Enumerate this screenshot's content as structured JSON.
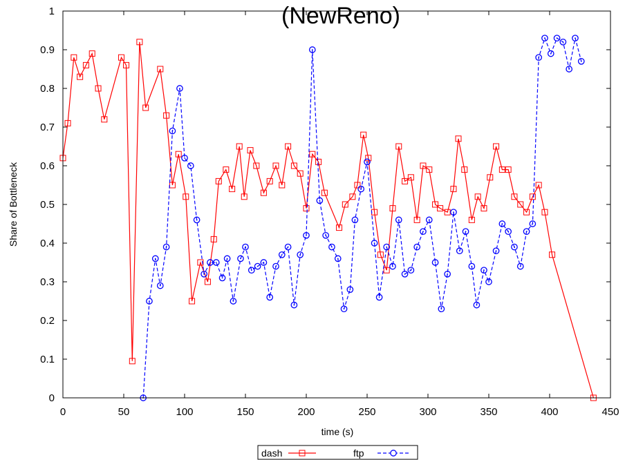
{
  "chart_data": {
    "type": "line",
    "title": "(NewReno)",
    "xlabel": "time (s)",
    "ylabel": "Share of Bottleneck",
    "xlim": [
      0,
      450
    ],
    "ylim": [
      0,
      1
    ],
    "x_ticks": [
      "0",
      "50",
      "100",
      "150",
      "200",
      "250",
      "300",
      "350",
      "400",
      "450"
    ],
    "y_ticks": [
      "0",
      "0.1",
      "0.2",
      "0.3",
      "0.4",
      "0.5",
      "0.6",
      "0.7",
      "0.8",
      "0.9",
      "1"
    ],
    "grid": false,
    "legend_position": "bottom-center",
    "series": [
      {
        "name": "dash",
        "color": "#ff0000",
        "line_style": "solid",
        "marker": "square",
        "points": [
          [
            0,
            0.62
          ],
          [
            4,
            0.71
          ],
          [
            9,
            0.88
          ],
          [
            14,
            0.83
          ],
          [
            19,
            0.86
          ],
          [
            24,
            0.89
          ],
          [
            29,
            0.8
          ],
          [
            34,
            0.72
          ],
          [
            48,
            0.88
          ],
          [
            52,
            0.86
          ],
          [
            57,
            0.095
          ],
          [
            63,
            0.92
          ],
          [
            68,
            0.75
          ],
          [
            80,
            0.85
          ],
          [
            85,
            0.73
          ],
          [
            90,
            0.55
          ],
          [
            95,
            0.63
          ],
          [
            101,
            0.52
          ],
          [
            106,
            0.25
          ],
          [
            113,
            0.35
          ],
          [
            119,
            0.3
          ],
          [
            124,
            0.41
          ],
          [
            128,
            0.56
          ],
          [
            134,
            0.59
          ],
          [
            139,
            0.54
          ],
          [
            145,
            0.65
          ],
          [
            149,
            0.52
          ],
          [
            154,
            0.64
          ],
          [
            159,
            0.6
          ],
          [
            165,
            0.53
          ],
          [
            170,
            0.56
          ],
          [
            175,
            0.6
          ],
          [
            180,
            0.55
          ],
          [
            185,
            0.65
          ],
          [
            190,
            0.6
          ],
          [
            195,
            0.58
          ],
          [
            200,
            0.49
          ],
          [
            205,
            0.63
          ],
          [
            210,
            0.61
          ],
          [
            215,
            0.53
          ],
          [
            227,
            0.44
          ],
          [
            232,
            0.5
          ],
          [
            238,
            0.52
          ],
          [
            242,
            0.55
          ],
          [
            247,
            0.68
          ],
          [
            251,
            0.62
          ],
          [
            256,
            0.48
          ],
          [
            261,
            0.37
          ],
          [
            266,
            0.33
          ],
          [
            271,
            0.49
          ],
          [
            276,
            0.65
          ],
          [
            281,
            0.56
          ],
          [
            286,
            0.57
          ],
          [
            291,
            0.46
          ],
          [
            296,
            0.6
          ],
          [
            301,
            0.59
          ],
          [
            306,
            0.5
          ],
          [
            310,
            0.49
          ],
          [
            316,
            0.48
          ],
          [
            321,
            0.54
          ],
          [
            325,
            0.67
          ],
          [
            330,
            0.59
          ],
          [
            336,
            0.46
          ],
          [
            341,
            0.52
          ],
          [
            346,
            0.49
          ],
          [
            351,
            0.57
          ],
          [
            356,
            0.65
          ],
          [
            361,
            0.59
          ],
          [
            366,
            0.59
          ],
          [
            371,
            0.52
          ],
          [
            376,
            0.5
          ],
          [
            381,
            0.48
          ],
          [
            386,
            0.52
          ],
          [
            391,
            0.55
          ],
          [
            396,
            0.48
          ],
          [
            402,
            0.37
          ],
          [
            436,
            0.0
          ]
        ]
      },
      {
        "name": "ftp",
        "color": "#0000ff",
        "line_style": "dashed",
        "marker": "circle",
        "points": [
          [
            66,
            0.0
          ],
          [
            71,
            0.25
          ],
          [
            76,
            0.36
          ],
          [
            80,
            0.29
          ],
          [
            85,
            0.39
          ],
          [
            90,
            0.69
          ],
          [
            96,
            0.8
          ],
          [
            100,
            0.62
          ],
          [
            105,
            0.6
          ],
          [
            110,
            0.46
          ],
          [
            116,
            0.32
          ],
          [
            121,
            0.35
          ],
          [
            126,
            0.35
          ],
          [
            131,
            0.31
          ],
          [
            135,
            0.36
          ],
          [
            140,
            0.25
          ],
          [
            146,
            0.36
          ],
          [
            150,
            0.39
          ],
          [
            155,
            0.33
          ],
          [
            160,
            0.34
          ],
          [
            165,
            0.35
          ],
          [
            170,
            0.26
          ],
          [
            175,
            0.34
          ],
          [
            180,
            0.37
          ],
          [
            185,
            0.39
          ],
          [
            190,
            0.24
          ],
          [
            195,
            0.37
          ],
          [
            200,
            0.42
          ],
          [
            205,
            0.9
          ],
          [
            211,
            0.51
          ],
          [
            216,
            0.42
          ],
          [
            221,
            0.39
          ],
          [
            226,
            0.36
          ],
          [
            231,
            0.23
          ],
          [
            236,
            0.28
          ],
          [
            240,
            0.46
          ],
          [
            245,
            0.54
          ],
          [
            250,
            0.61
          ],
          [
            256,
            0.4
          ],
          [
            260,
            0.26
          ],
          [
            266,
            0.39
          ],
          [
            271,
            0.34
          ],
          [
            276,
            0.46
          ],
          [
            281,
            0.32
          ],
          [
            286,
            0.33
          ],
          [
            291,
            0.39
          ],
          [
            296,
            0.43
          ],
          [
            301,
            0.46
          ],
          [
            306,
            0.35
          ],
          [
            311,
            0.23
          ],
          [
            316,
            0.32
          ],
          [
            321,
            0.48
          ],
          [
            326,
            0.38
          ],
          [
            331,
            0.43
          ],
          [
            336,
            0.34
          ],
          [
            340,
            0.24
          ],
          [
            346,
            0.33
          ],
          [
            350,
            0.3
          ],
          [
            356,
            0.38
          ],
          [
            361,
            0.45
          ],
          [
            366,
            0.43
          ],
          [
            371,
            0.39
          ],
          [
            376,
            0.34
          ],
          [
            381,
            0.43
          ],
          [
            386,
            0.45
          ],
          [
            391,
            0.88
          ],
          [
            396,
            0.93
          ],
          [
            401,
            0.89
          ],
          [
            406,
            0.93
          ],
          [
            411,
            0.92
          ],
          [
            416,
            0.85
          ],
          [
            421,
            0.93
          ],
          [
            426,
            0.87
          ]
        ]
      }
    ]
  }
}
